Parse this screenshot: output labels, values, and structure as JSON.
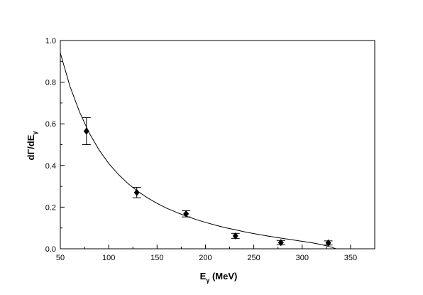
{
  "chart_data": {
    "type": "scatter",
    "title": "",
    "xlabel": "E",
    "xlabel_subscript": "γ",
    "xlabel_unit": " (MeV)",
    "ylabel": "dΓ/dE",
    "ylabel_subscript": "γ",
    "xlim": [
      50,
      375
    ],
    "ylim": [
      0.0,
      1.0
    ],
    "x_ticks": [
      50,
      100,
      150,
      200,
      250,
      300,
      350
    ],
    "y_ticks": [
      0.0,
      0.2,
      0.4,
      0.6,
      0.8,
      1.0
    ],
    "x_tick_labels": [
      "50",
      "100",
      "150",
      "200",
      "250",
      "300",
      "350"
    ],
    "y_tick_labels": [
      "0.0",
      "0.2",
      "0.4",
      "0.6",
      "0.8",
      "1.0"
    ],
    "grid": false,
    "points": [
      {
        "x": 77,
        "y": 0.565,
        "err": 0.065
      },
      {
        "x": 129,
        "y": 0.27,
        "err": 0.025
      },
      {
        "x": 180,
        "y": 0.168,
        "err": 0.015
      },
      {
        "x": 231,
        "y": 0.062,
        "err": 0.012
      },
      {
        "x": 278,
        "y": 0.03,
        "err": 0.01
      },
      {
        "x": 327,
        "y": 0.028,
        "err": 0.01
      }
    ],
    "curve": {
      "x": [
        50,
        60,
        70,
        80,
        90,
        100,
        110,
        120,
        130,
        140,
        150,
        160,
        170,
        180,
        190,
        200,
        210,
        220,
        230,
        240,
        250,
        260,
        270,
        280,
        290,
        300,
        310,
        320,
        330,
        335
      ],
      "y": [
        0.94,
        0.78,
        0.655,
        0.555,
        0.475,
        0.41,
        0.357,
        0.313,
        0.276,
        0.245,
        0.218,
        0.195,
        0.175,
        0.157,
        0.141,
        0.127,
        0.114,
        0.102,
        0.092,
        0.082,
        0.073,
        0.065,
        0.057,
        0.05,
        0.043,
        0.036,
        0.029,
        0.02,
        0.008,
        0.0
      ]
    }
  }
}
